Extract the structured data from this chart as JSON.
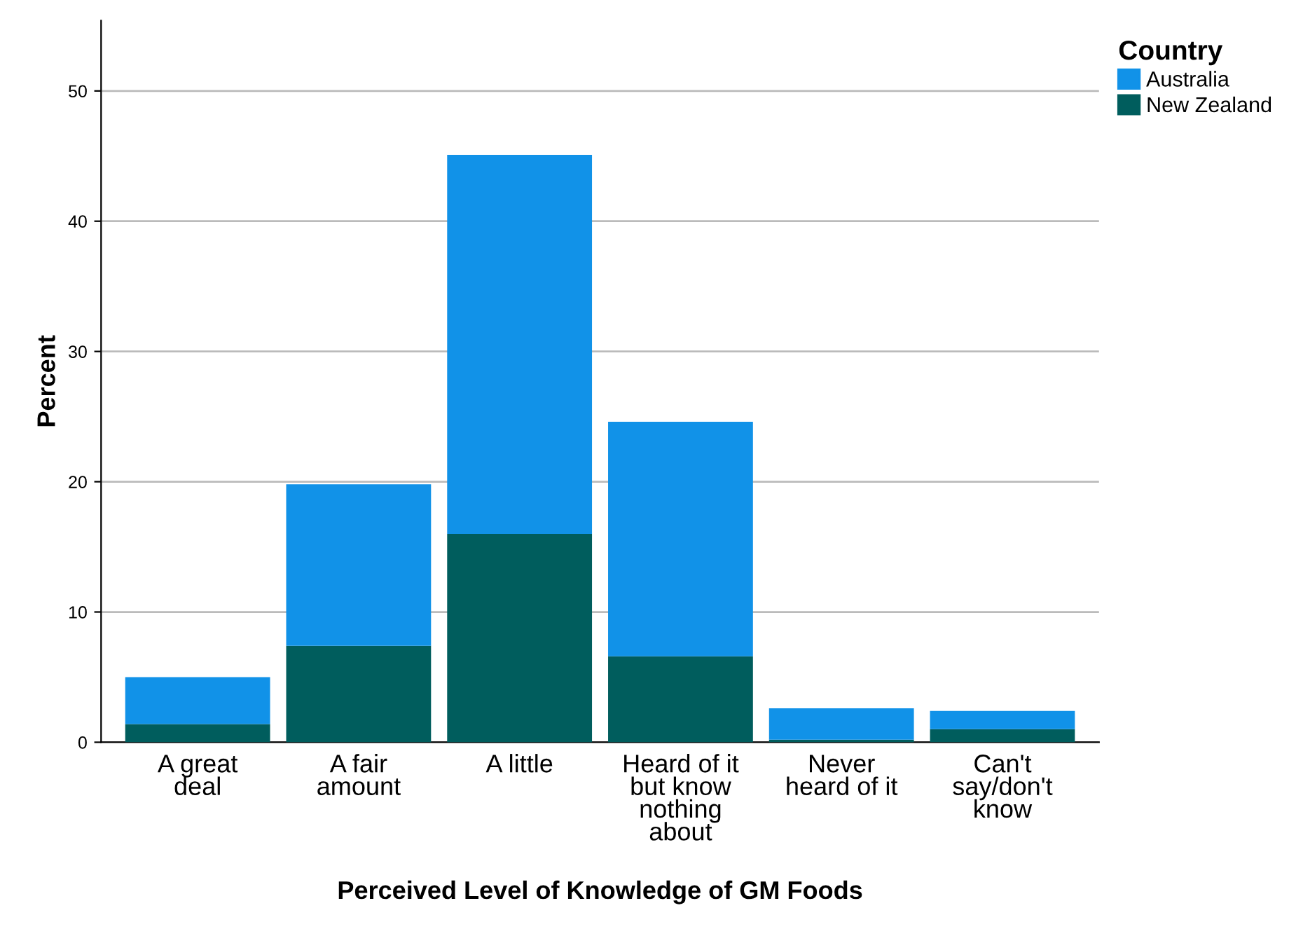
{
  "chart_data": {
    "type": "bar",
    "stacked": true,
    "xlabel": "Perceived Level of Knowledge of GM Foods",
    "ylabel": "Percent",
    "legend_title": "Country",
    "legend": "top right",
    "categories": [
      "A great\ndeal",
      "A fair\namount",
      "A little",
      "Heard of it\nbut know\nnothing\nabout",
      "Never\nheard of it",
      "Can't\nsay/don't\nknow"
    ],
    "series": [
      {
        "name": "New Zealand",
        "color": "#005d5d",
        "values": [
          1.4,
          7.4,
          16.0,
          6.6,
          0.2,
          1.0
        ]
      },
      {
        "name": "Australia",
        "color": "#1192e8",
        "values": [
          3.6,
          12.4,
          29.1,
          18.0,
          2.4,
          1.4
        ]
      }
    ],
    "ylim": [
      0,
      55.4
    ],
    "yticks": [
      0,
      10,
      20,
      30,
      40,
      50
    ],
    "grid": "y"
  }
}
